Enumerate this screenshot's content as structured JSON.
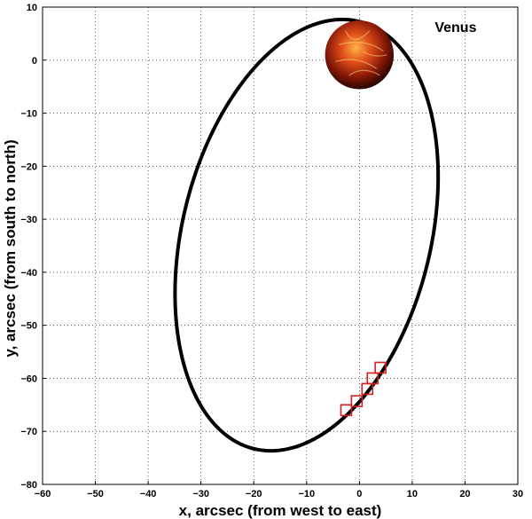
{
  "chart_data": {
    "type": "line",
    "title": "",
    "xlabel": "x, arcsec (from west to east)",
    "ylabel": "y, arcsec (from south to north)",
    "xlim": [
      -60,
      30
    ],
    "ylim": [
      -80,
      10
    ],
    "xticks": [
      -60,
      -50,
      -40,
      -30,
      -20,
      -10,
      0,
      10,
      20,
      30
    ],
    "yticks": [
      10,
      0,
      -10,
      -20,
      -30,
      -40,
      -50,
      -60,
      -70,
      -80
    ],
    "grid": true,
    "orbit": {
      "center": [
        -10,
        -33
      ],
      "semi_major": 41.5,
      "semi_minor": 23.5,
      "tilt_deg": 14,
      "color": "#000000"
    },
    "markers": {
      "shape": "square",
      "color": "#d62020",
      "points": [
        {
          "x": -2.5,
          "y": -66
        },
        {
          "x": -0.5,
          "y": -64.3
        },
        {
          "x": 1.5,
          "y": -62
        },
        {
          "x": 2.5,
          "y": -60
        },
        {
          "x": 4,
          "y": -58
        }
      ]
    },
    "venus": {
      "label": "Venus",
      "center": [
        0,
        1
      ],
      "radius_x": 6.5
    }
  }
}
